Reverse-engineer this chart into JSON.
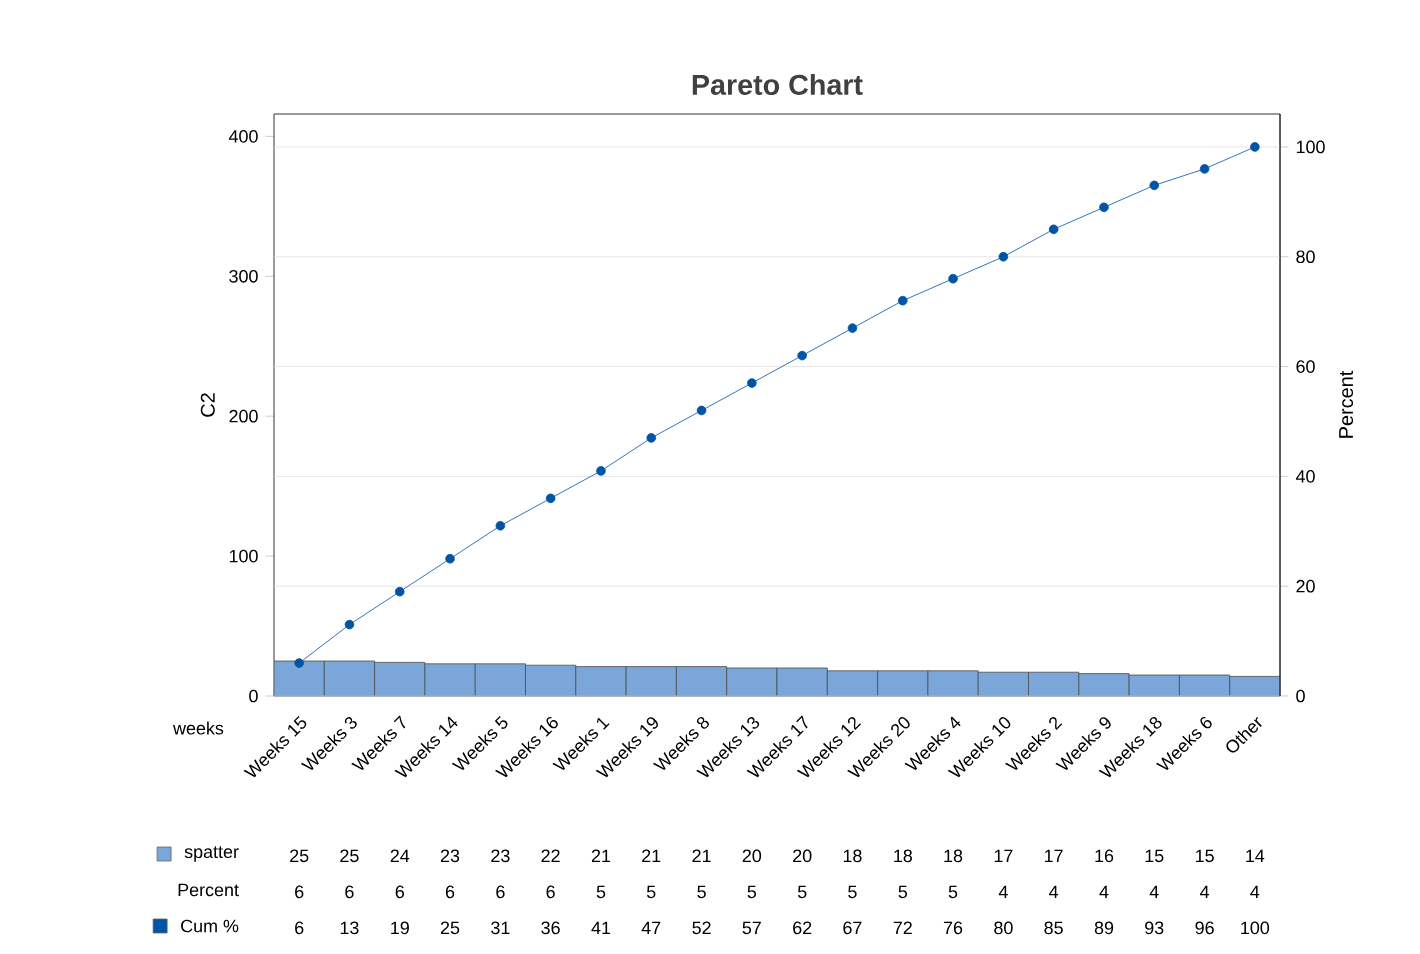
{
  "chart_data": {
    "type": "bar",
    "title": "Pareto Chart",
    "xlabel": "weeks",
    "ylabel": "C2",
    "y2label": "Percent",
    "categories": [
      "Weeks 15",
      "Weeks 3",
      "Weeks 7",
      "Weeks 14",
      "Weeks 5",
      "Weeks 16",
      "Weeks 1",
      "Weeks 19",
      "Weeks 8",
      "Weeks 13",
      "Weeks 17",
      "Weeks 12",
      "Weeks 20",
      "Weeks 4",
      "Weeks 10",
      "Weeks 2",
      "Weeks 9",
      "Weeks 18",
      "Weeks 6",
      "Other"
    ],
    "series": [
      {
        "name": "spatter",
        "color": "#7ba6da",
        "values": [
          25,
          25,
          24,
          23,
          23,
          22,
          21,
          21,
          21,
          20,
          20,
          18,
          18,
          18,
          17,
          17,
          16,
          15,
          15,
          14
        ],
        "value_labels": [
          "25",
          "25",
          "24",
          "23",
          "23",
          "22",
          "21",
          "21",
          "21",
          "20",
          "20",
          "18",
          "18",
          "18",
          "17",
          "17",
          "16",
          "15",
          "15",
          "14"
        ]
      },
      {
        "name": "Cum %",
        "type": "line",
        "axis": "y2",
        "color": "#0054a6",
        "values": [
          6,
          13,
          19,
          25,
          31,
          36,
          41,
          47,
          52,
          57,
          62,
          67,
          72,
          76,
          80,
          85,
          89,
          93,
          96,
          100
        ],
        "value_labels": [
          "6",
          "13",
          "19",
          "25",
          "31",
          "36",
          "41",
          "47",
          "52",
          "57",
          "62",
          "67",
          "72",
          "76",
          "80",
          "85",
          "89",
          "93",
          "96",
          "100"
        ]
      }
    ],
    "annotations": [
      "Percent",
      "6",
      "6",
      "6",
      "6",
      "6",
      "6",
      "5",
      "5",
      "5",
      "5",
      "5",
      "5",
      "5",
      "5",
      "4",
      "4",
      "4",
      "4",
      "4",
      "4"
    ],
    "ylim": [
      0,
      416
    ],
    "yticks": [
      0,
      100,
      200,
      300,
      400
    ],
    "y2lim": [
      0,
      106
    ],
    "y2ticks": [
      0,
      20,
      40,
      60,
      80,
      100
    ],
    "grid": "y2",
    "marker": "circle",
    "line_style": "solid",
    "legend": "bottom left"
  }
}
